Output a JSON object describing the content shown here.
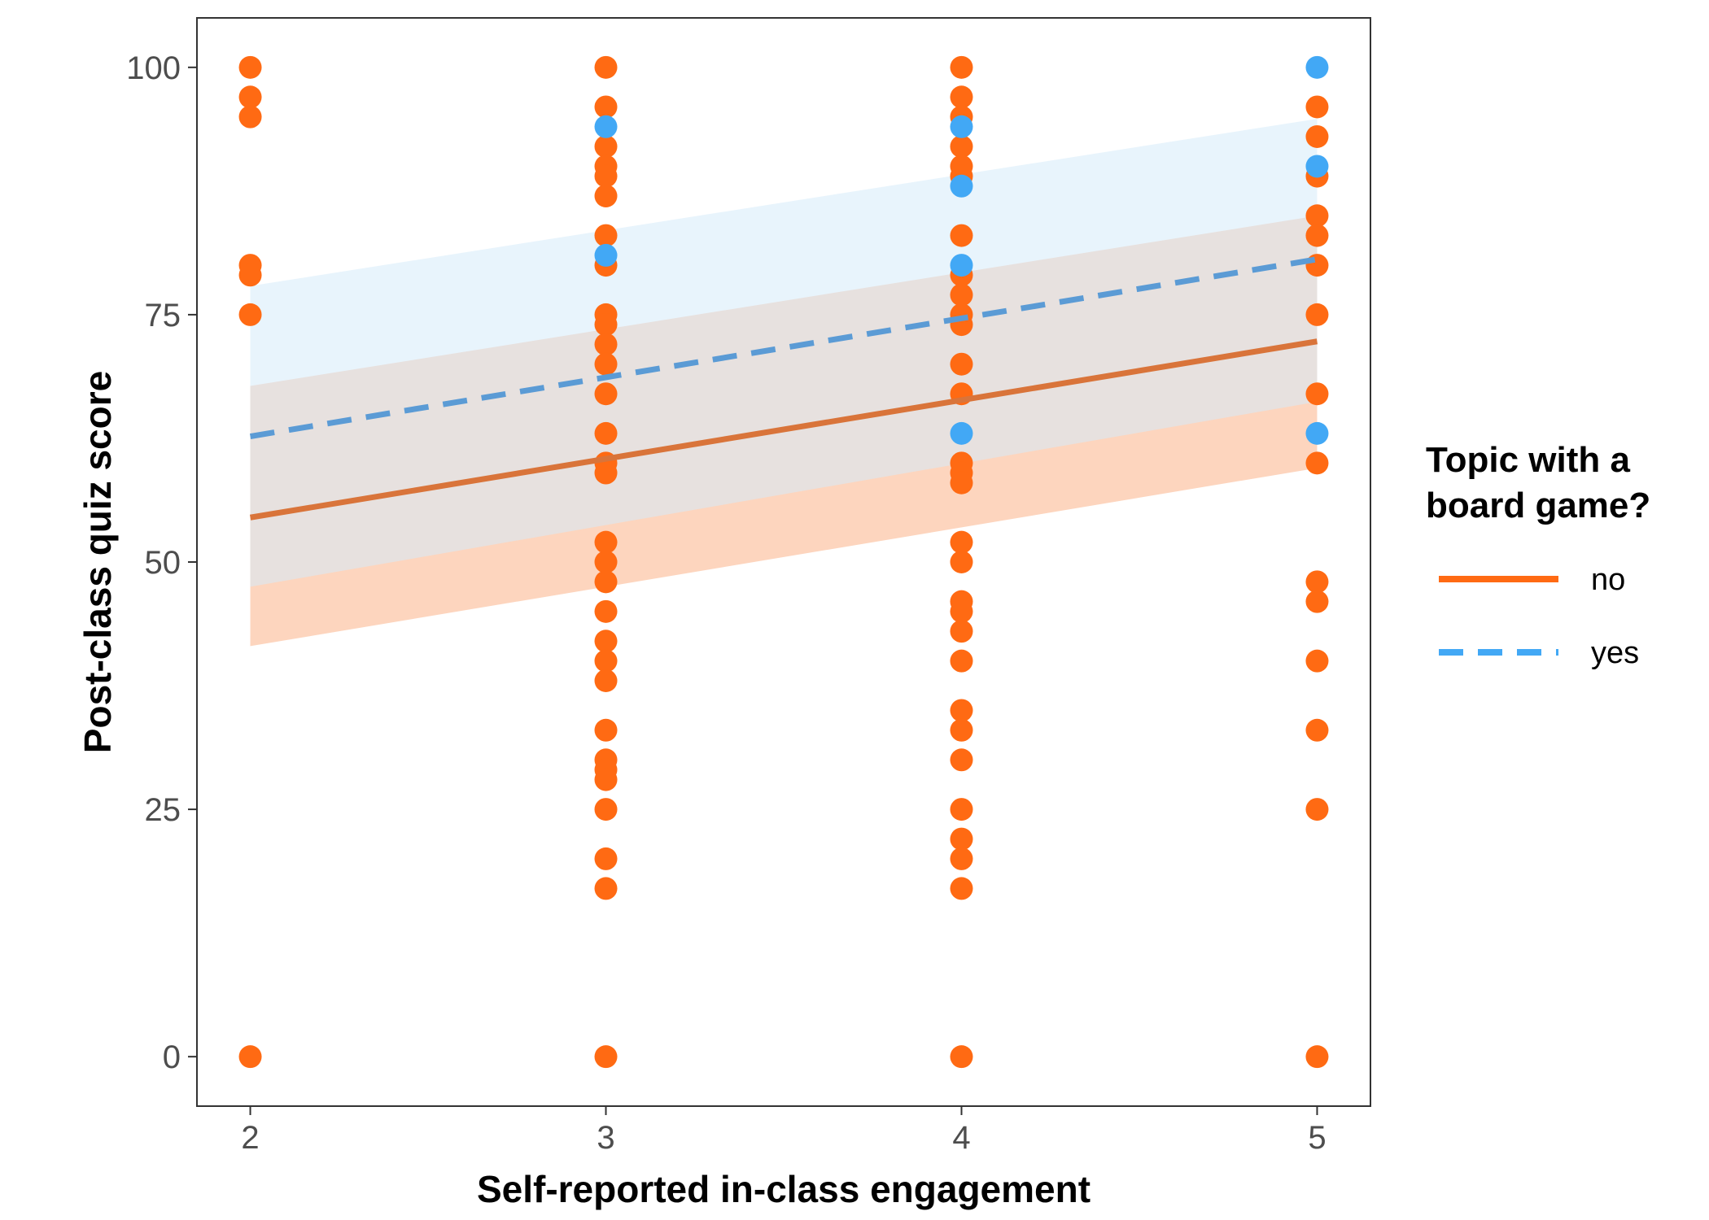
{
  "chart_data": {
    "type": "scatter",
    "xlabel": "Self-reported in-class engagement",
    "ylabel": "Post-class quiz score",
    "xlim": [
      1.85,
      5.15
    ],
    "ylim": [
      -5,
      105
    ],
    "x_ticks": [
      2,
      3,
      4,
      5
    ],
    "y_ticks": [
      0,
      25,
      50,
      75,
      100
    ],
    "grid": false,
    "legend": {
      "title_lines": [
        "Topic with a",
        "board game?"
      ],
      "placement": "right"
    },
    "series": [
      {
        "name": "no",
        "color": "#FF6A13",
        "line_color": "#D9743A",
        "ribbon_color": "#FDD5BE",
        "line_style": "solid",
        "fit_line": [
          [
            2,
            54.5
          ],
          [
            5,
            72.3
          ]
        ],
        "ribbon_upper": [
          [
            2,
            67.8
          ],
          [
            5,
            85.0
          ]
        ],
        "ribbon_lower": [
          [
            2,
            41.5
          ],
          [
            5,
            59.5
          ]
        ],
        "points": [
          [
            2,
            100
          ],
          [
            2,
            97
          ],
          [
            2,
            95
          ],
          [
            2,
            80
          ],
          [
            2,
            79
          ],
          [
            2,
            75
          ],
          [
            2,
            0
          ],
          [
            3,
            100
          ],
          [
            3,
            96
          ],
          [
            3,
            92
          ],
          [
            3,
            90
          ],
          [
            3,
            89
          ],
          [
            3,
            87
          ],
          [
            3,
            83
          ],
          [
            3,
            80
          ],
          [
            3,
            75
          ],
          [
            3,
            74
          ],
          [
            3,
            72
          ],
          [
            3,
            70
          ],
          [
            3,
            67
          ],
          [
            3,
            63
          ],
          [
            3,
            60
          ],
          [
            3,
            59
          ],
          [
            3,
            52
          ],
          [
            3,
            50
          ],
          [
            3,
            48
          ],
          [
            3,
            45
          ],
          [
            3,
            42
          ],
          [
            3,
            40
          ],
          [
            3,
            38
          ],
          [
            3,
            33
          ],
          [
            3,
            30
          ],
          [
            3,
            29
          ],
          [
            3,
            28
          ],
          [
            3,
            25
          ],
          [
            3,
            20
          ],
          [
            3,
            17
          ],
          [
            3,
            0
          ],
          [
            4,
            100
          ],
          [
            4,
            97
          ],
          [
            4,
            95
          ],
          [
            4,
            92
          ],
          [
            4,
            90
          ],
          [
            4,
            89
          ],
          [
            4,
            83
          ],
          [
            4,
            79
          ],
          [
            4,
            77
          ],
          [
            4,
            75
          ],
          [
            4,
            74
          ],
          [
            4,
            70
          ],
          [
            4,
            67
          ],
          [
            4,
            60
          ],
          [
            4,
            59
          ],
          [
            4,
            58
          ],
          [
            4,
            52
          ],
          [
            4,
            50
          ],
          [
            4,
            46
          ],
          [
            4,
            45
          ],
          [
            4,
            43
          ],
          [
            4,
            40
          ],
          [
            4,
            35
          ],
          [
            4,
            33
          ],
          [
            4,
            30
          ],
          [
            4,
            25
          ],
          [
            4,
            22
          ],
          [
            4,
            20
          ],
          [
            4,
            17
          ],
          [
            4,
            0
          ],
          [
            5,
            96
          ],
          [
            5,
            93
          ],
          [
            5,
            89
          ],
          [
            5,
            85
          ],
          [
            5,
            83
          ],
          [
            5,
            80
          ],
          [
            5,
            75
          ],
          [
            5,
            67
          ],
          [
            5,
            60
          ],
          [
            5,
            48
          ],
          [
            5,
            46
          ],
          [
            5,
            40
          ],
          [
            5,
            33
          ],
          [
            5,
            25
          ],
          [
            5,
            0
          ]
        ]
      },
      {
        "name": "yes",
        "color": "#42A8F5",
        "line_color": "#5B9BD5",
        "ribbon_color": "#D6EBFA",
        "line_style": "dashed",
        "fit_line": [
          [
            2,
            62.7
          ],
          [
            5,
            80.6
          ]
        ],
        "ribbon_upper": [
          [
            2,
            77.9
          ],
          [
            5,
            94.8
          ]
        ],
        "ribbon_lower": [
          [
            2,
            47.5
          ],
          [
            5,
            66.2
          ]
        ],
        "points": [
          [
            3,
            94
          ],
          [
            3,
            81
          ],
          [
            4,
            94
          ],
          [
            4,
            88
          ],
          [
            4,
            80
          ],
          [
            4,
            63
          ],
          [
            5,
            100
          ],
          [
            5,
            90
          ],
          [
            5,
            63
          ]
        ]
      }
    ]
  }
}
